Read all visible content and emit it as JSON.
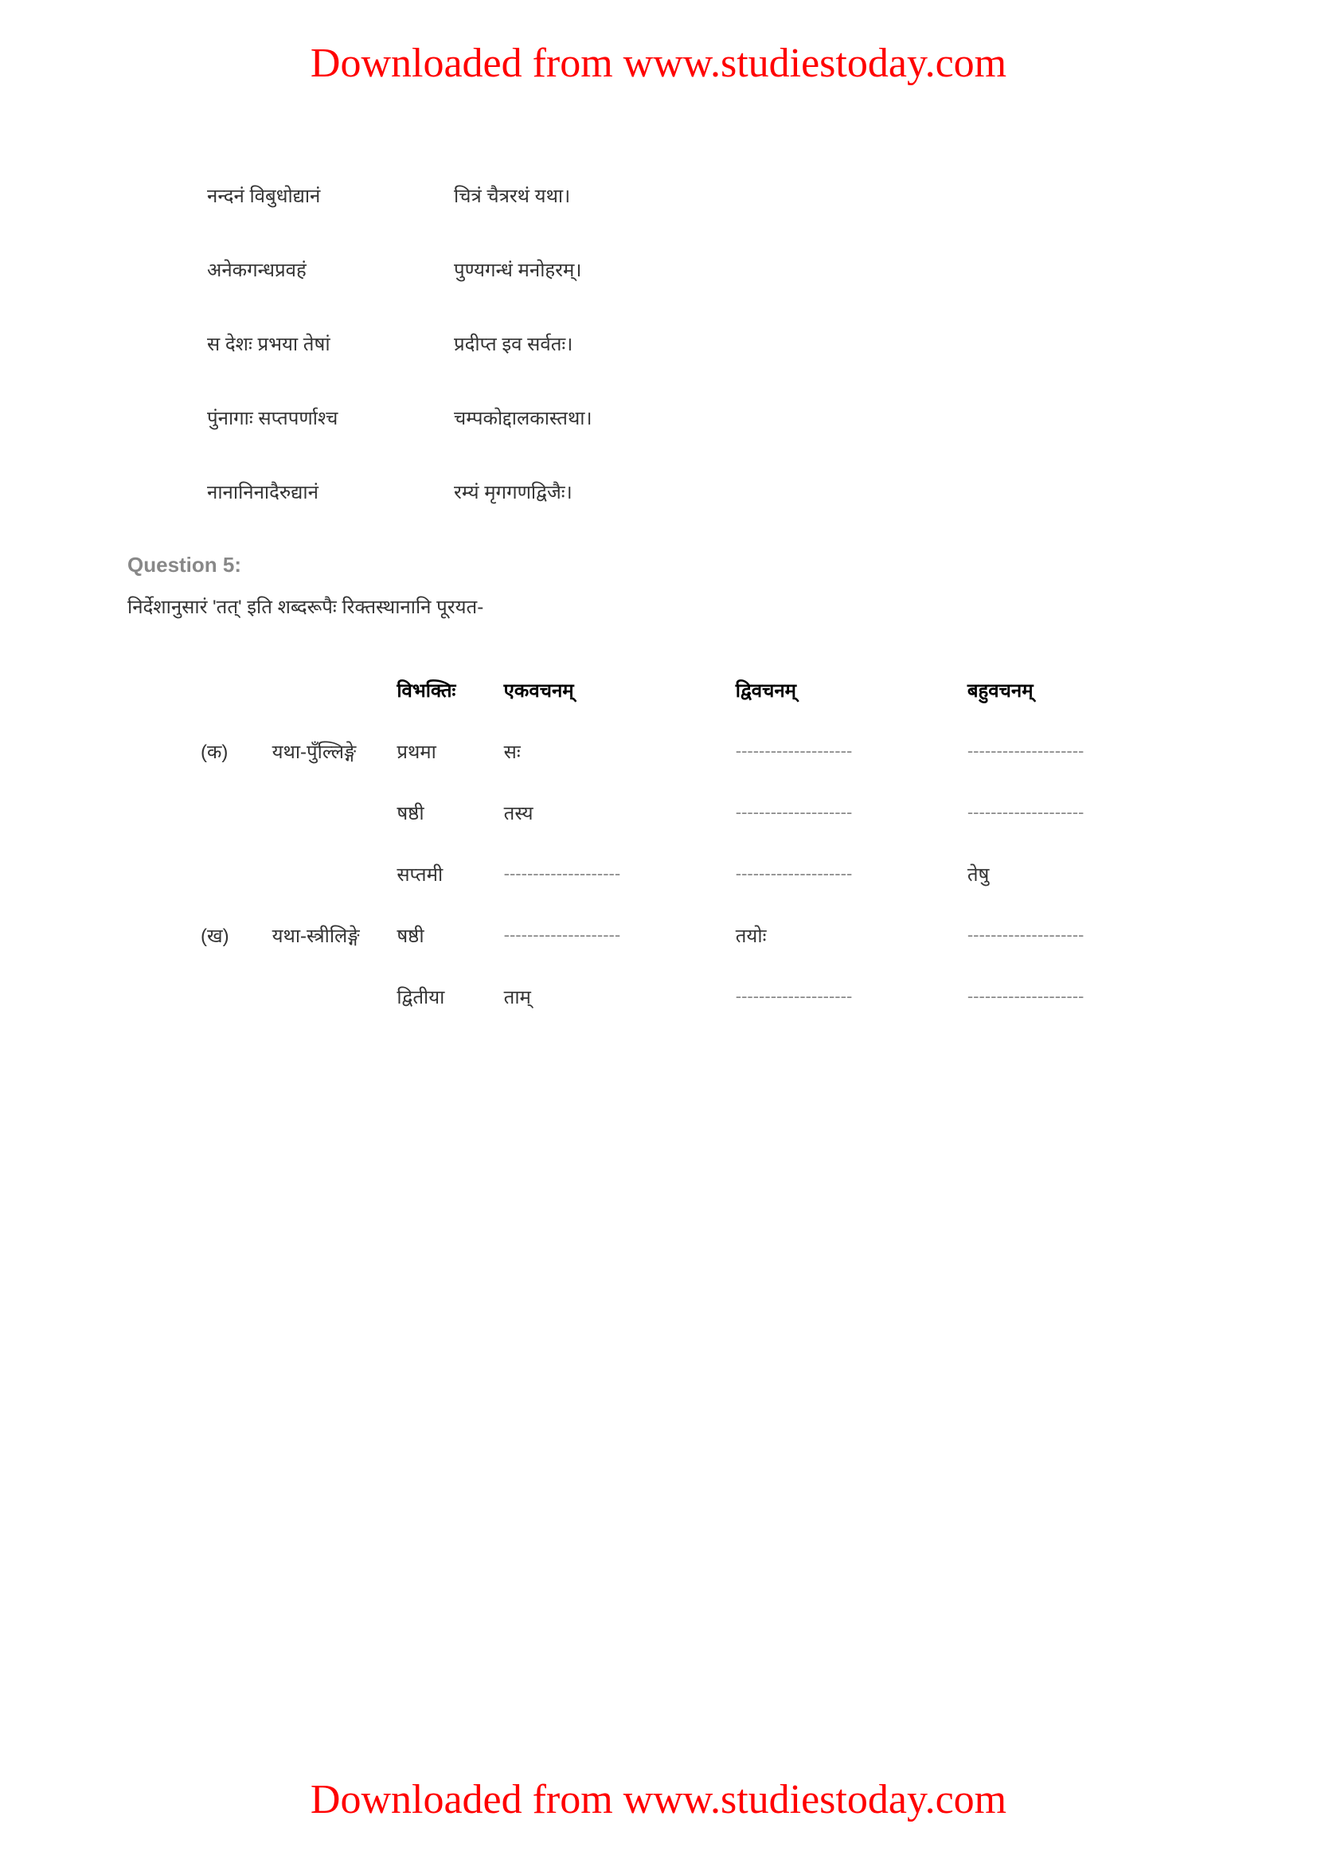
{
  "watermark": "Downloaded from www.studiestoday.com",
  "verses": [
    {
      "col1": "नन्दनं विबुधोद्यानं",
      "col2": "चित्रं चैत्ररथं यथा।"
    },
    {
      "col1": "अनेकगन्धप्रवहं",
      "col2": "पुण्यगन्धं मनोहरम्।"
    },
    {
      "col1": "स देशः प्रभया तेषां",
      "col2": "प्रदीप्त इव सर्वतः।"
    },
    {
      "col1": "पुंनागाः सप्तपर्णाश्च",
      "col2": "चम्पकोद्दालकास्तथा।"
    },
    {
      "col1": "नानानिनादैरुद्यानं",
      "col2": "रम्यं मृगगणद्विजैः।"
    }
  ],
  "question": {
    "label": "Question 5:",
    "text": "निर्देशानुसारं 'तत्' इति शब्दरूपैः रिक्तस्थानानि पूरयत-"
  },
  "table_headers": {
    "vibhakti": "विभक्तिः",
    "eka": "एकवचनम्",
    "dvi": "द्विवचनम्",
    "bahu": "बहुवचनम्"
  },
  "rows": [
    {
      "marker": "(क)",
      "gender": "यथा-पुँल्लिङ्गे",
      "vibhakti": "प्रथमा",
      "eka": "सः",
      "dvi": "--------------------",
      "bahu": "--------------------"
    },
    {
      "marker": "",
      "gender": "",
      "vibhakti": "षष्ठी",
      "eka": "तस्य",
      "dvi": "--------------------",
      "bahu": "--------------------"
    },
    {
      "marker": "",
      "gender": "",
      "vibhakti": "सप्तमी",
      "eka": "--------------------",
      "dvi": "--------------------",
      "bahu": "तेषु"
    },
    {
      "marker": "(ख)",
      "gender": "यथा-स्त्रीलिङ्गे",
      "vibhakti": "षष्ठी",
      "eka": "--------------------",
      "dvi": "तयोः",
      "bahu": "--------------------"
    },
    {
      "marker": "",
      "gender": "",
      "vibhakti": "द्वितीया",
      "eka": "ताम्",
      "dvi": "--------------------",
      "bahu": "--------------------"
    }
  ],
  "blank_marker": "--------------------"
}
